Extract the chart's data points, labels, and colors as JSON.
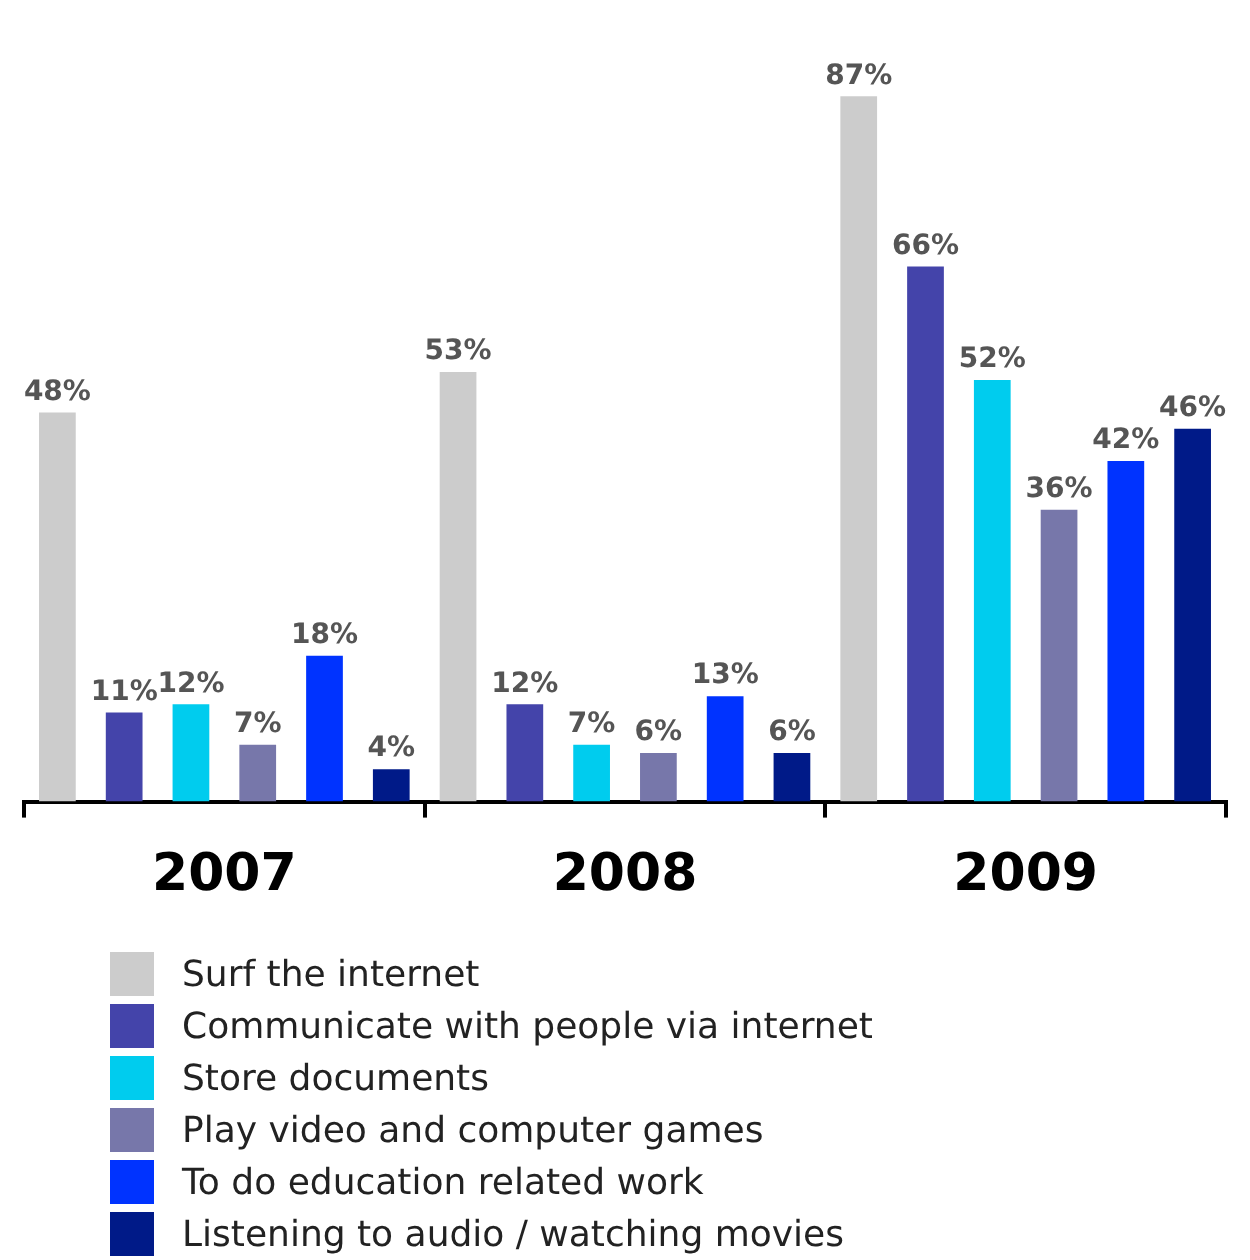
{
  "chart_data": {
    "type": "bar",
    "categories": [
      "2007",
      "2008",
      "2009"
    ],
    "legend": "bottom",
    "series": [
      {
        "name": "Surf the internet",
        "color": "#cccccc",
        "values": [
          48,
          53,
          87
        ],
        "value_labels": [
          "48%",
          "53%",
          "87%"
        ]
      },
      {
        "name": "Communicate with people via internet",
        "color": "#4444aa",
        "values": [
          11,
          12,
          66
        ],
        "value_labels": [
          "11%",
          "12%",
          "66%"
        ]
      },
      {
        "name": "Store documents",
        "color": "#00ccee",
        "values": [
          12,
          7,
          52
        ],
        "value_labels": [
          "12%",
          "7%",
          "52%"
        ]
      },
      {
        "name": "Play video and computer games",
        "color": "#7777aa",
        "values": [
          7,
          6,
          36
        ],
        "value_labels": [
          "7%",
          "6%",
          "36%"
        ]
      },
      {
        "name": "To do education related work",
        "color": "#0033ff",
        "values": [
          18,
          13,
          42
        ],
        "value_labels": [
          "18%",
          "13%",
          "42%"
        ]
      },
      {
        "name": "Listening to audio / watching movies",
        "color": "#001a88",
        "values": [
          4,
          6,
          46
        ],
        "value_labels": [
          "4%",
          "6%",
          "46%"
        ]
      }
    ]
  }
}
